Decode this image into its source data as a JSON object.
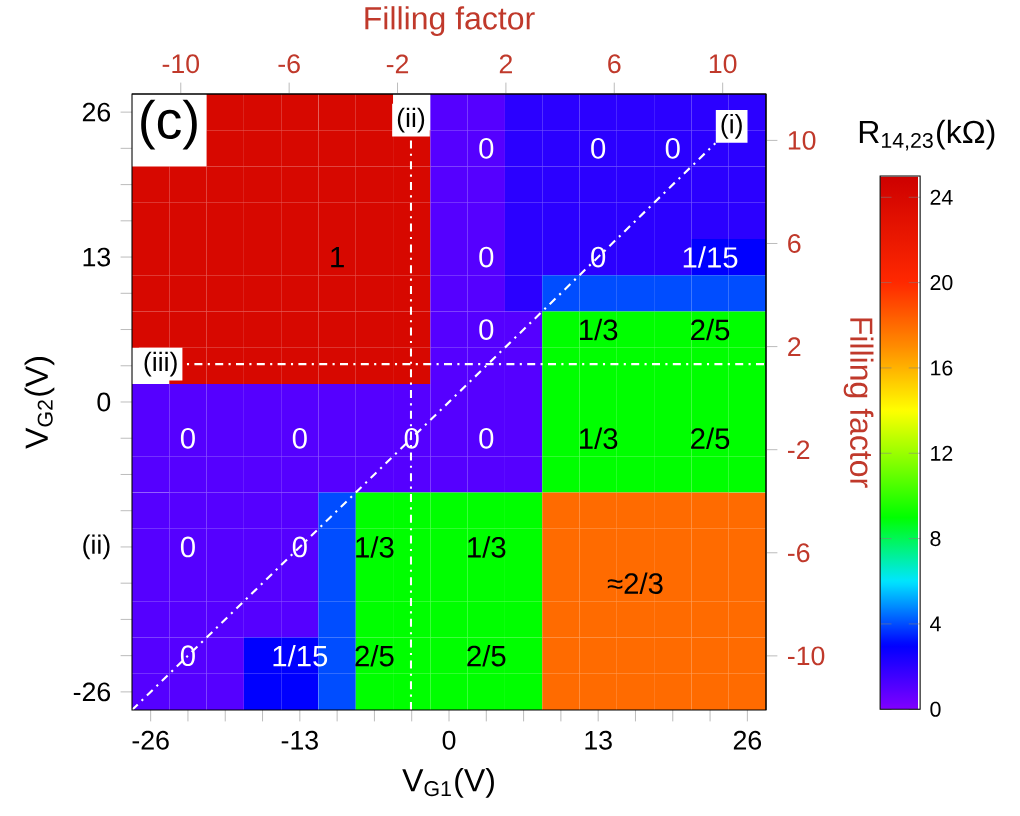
{
  "chart_data": {
    "type": "heatmap",
    "xlabel": "V$_{G1}$(V)",
    "ylabel": "V$_{G2}$(V)",
    "x2label": "Filling factor",
    "y2label": "Filling factor",
    "clabel": "R$_{14,23}$(kΩ)",
    "categories": [
      "-26",
      null,
      null,
      null,
      "-13",
      null,
      null,
      null,
      "0",
      null,
      null,
      null,
      "13",
      null,
      null,
      null,
      "26"
    ],
    "y_categories": [
      "26",
      null,
      null,
      null,
      "13",
      null,
      null,
      null,
      "0",
      null,
      null,
      null,
      "(ii)",
      null,
      null,
      null,
      "-26"
    ],
    "cells": [
      [
        null,
        null,
        24,
        24,
        24,
        24,
        24,
        null,
        1,
        1,
        2,
        2,
        2,
        2,
        2,
        2,
        2
      ],
      [
        null,
        null,
        24,
        24,
        24,
        24,
        24,
        24,
        1,
        1,
        2,
        2,
        2,
        2,
        2,
        2,
        2
      ],
      [
        24,
        24,
        24,
        24,
        24,
        24,
        24,
        24,
        1,
        1,
        2,
        2,
        2,
        2,
        2,
        2,
        2
      ],
      [
        24,
        24,
        24,
        24,
        24,
        24,
        24,
        24,
        1,
        1,
        2,
        2,
        2,
        2,
        2,
        2,
        2
      ],
      [
        24,
        24,
        24,
        24,
        24,
        24,
        24,
        24,
        1,
        1,
        2,
        2,
        2,
        2,
        2,
        3,
        3
      ],
      [
        24,
        24,
        24,
        24,
        24,
        24,
        24,
        24,
        1,
        1,
        2,
        4,
        4,
        4,
        4,
        4,
        4
      ],
      [
        24,
        24,
        24,
        24,
        24,
        24,
        24,
        24,
        1,
        1,
        1,
        9,
        9,
        9,
        9,
        9,
        9
      ],
      [
        null,
        24,
        24,
        24,
        24,
        24,
        24,
        24,
        1,
        1,
        1,
        9,
        9,
        9,
        9,
        9,
        9
      ],
      [
        1,
        1,
        1,
        1,
        1,
        1,
        1,
        1,
        1,
        1,
        1,
        9,
        9,
        9,
        9,
        9,
        9
      ],
      [
        1,
        1,
        1,
        1,
        1,
        1,
        1,
        1,
        1,
        1,
        1,
        9,
        9,
        9,
        9,
        9,
        9
      ],
      [
        1,
        1,
        1,
        1,
        1,
        1,
        1,
        1,
        1,
        1,
        1,
        9,
        9,
        9,
        9,
        9,
        9
      ],
      [
        1,
        1,
        1,
        1,
        1,
        4,
        9,
        9,
        9,
        9,
        9,
        18,
        18,
        18,
        18,
        18,
        18
      ],
      [
        1,
        1,
        1,
        1,
        1,
        4,
        9,
        9,
        9,
        9,
        9,
        18,
        18,
        18,
        18,
        18,
        18
      ],
      [
        1,
        1,
        1,
        1,
        1,
        4,
        9,
        9,
        9,
        9,
        9,
        18,
        18,
        18,
        18,
        18,
        18
      ],
      [
        1,
        1,
        1,
        1,
        1,
        4,
        9,
        9,
        9,
        9,
        9,
        18,
        18,
        18,
        18,
        18,
        18
      ],
      [
        1,
        1,
        1,
        3,
        3,
        4,
        9,
        9,
        9,
        9,
        9,
        18,
        18,
        18,
        18,
        18,
        18
      ],
      [
        1,
        1,
        1,
        3,
        3,
        4,
        9,
        9,
        9,
        9,
        9,
        18,
        18,
        18,
        18,
        18,
        18
      ]
    ],
    "clim": [
      0,
      25
    ],
    "cticks": [
      0,
      4,
      8,
      12,
      16,
      20,
      24
    ],
    "x2lim": [
      -11.8,
      11.6
    ],
    "x2ticks": [
      -10,
      -6,
      -2,
      2,
      6,
      10
    ],
    "y2lim": [
      -12.1,
      11.8
    ],
    "y2ticks": [
      -10,
      -6,
      -2,
      2,
      6,
      10
    ],
    "annotations": [
      "(c)",
      "(ii)",
      "(iii)",
      "(i)",
      "0",
      "0",
      "0",
      "1",
      "0",
      "0",
      "1/15",
      "0",
      "1/3",
      "2/5",
      "0",
      "0",
      "0",
      "0",
      "1/3",
      "2/5",
      "0",
      "0",
      "1/3",
      "1/3",
      "≈2/3",
      "0",
      "1/15",
      "2/5",
      "2/5"
    ]
  }
}
